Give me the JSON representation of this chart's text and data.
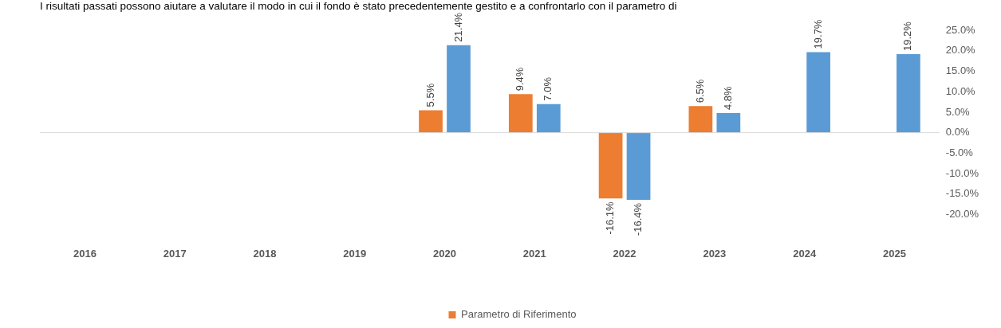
{
  "chart_data": {
    "type": "bar",
    "title": "I risultati passati possono aiutare a valutare il modo in cui il fondo è stato precedentemente gestito e a confrontarlo con il parametro di",
    "categories": [
      "2016",
      "2017",
      "2018",
      "2019",
      "2020",
      "2021",
      "2022",
      "2023",
      "2024",
      "2025"
    ],
    "series": [
      {
        "name": "Parametro di Riferimento",
        "color": "#ed7d31",
        "values": [
          null,
          null,
          null,
          null,
          5.5,
          9.4,
          -16.1,
          6.5,
          null,
          null
        ],
        "value_labels": [
          null,
          null,
          null,
          null,
          "5.5%",
          "9.4%",
          "-16.1%",
          "6.5%",
          null,
          null
        ]
      },
      {
        "color": "#5b9bd5",
        "values": [
          null,
          null,
          null,
          null,
          21.4,
          7.0,
          -16.4,
          4.8,
          19.7,
          19.2
        ],
        "value_labels": [
          null,
          null,
          null,
          null,
          "21.4%",
          "7.0%",
          "-16.4%",
          "4.8%",
          "19.7%",
          "19.2%"
        ]
      }
    ],
    "ylim": [
      -20,
      25
    ],
    "yticks": [
      {
        "value": -20,
        "label": "-20.0%"
      },
      {
        "value": -15,
        "label": "-15.0%"
      },
      {
        "value": -10,
        "label": "-10.0%"
      },
      {
        "value": -5,
        "label": "-5.0%"
      },
      {
        "value": 0,
        "label": "0.0%"
      },
      {
        "value": 5,
        "label": "5.0%"
      },
      {
        "value": 10,
        "label": "10.0%"
      },
      {
        "value": 15,
        "label": "15.0%"
      },
      {
        "value": 20,
        "label": "20.0%"
      },
      {
        "value": 25,
        "label": "25.0%"
      }
    ],
    "ref_lines": [
      {
        "axis": "y",
        "value": 0,
        "color": "#d9d9d9"
      }
    ],
    "grid": false,
    "legend": "bottom"
  }
}
